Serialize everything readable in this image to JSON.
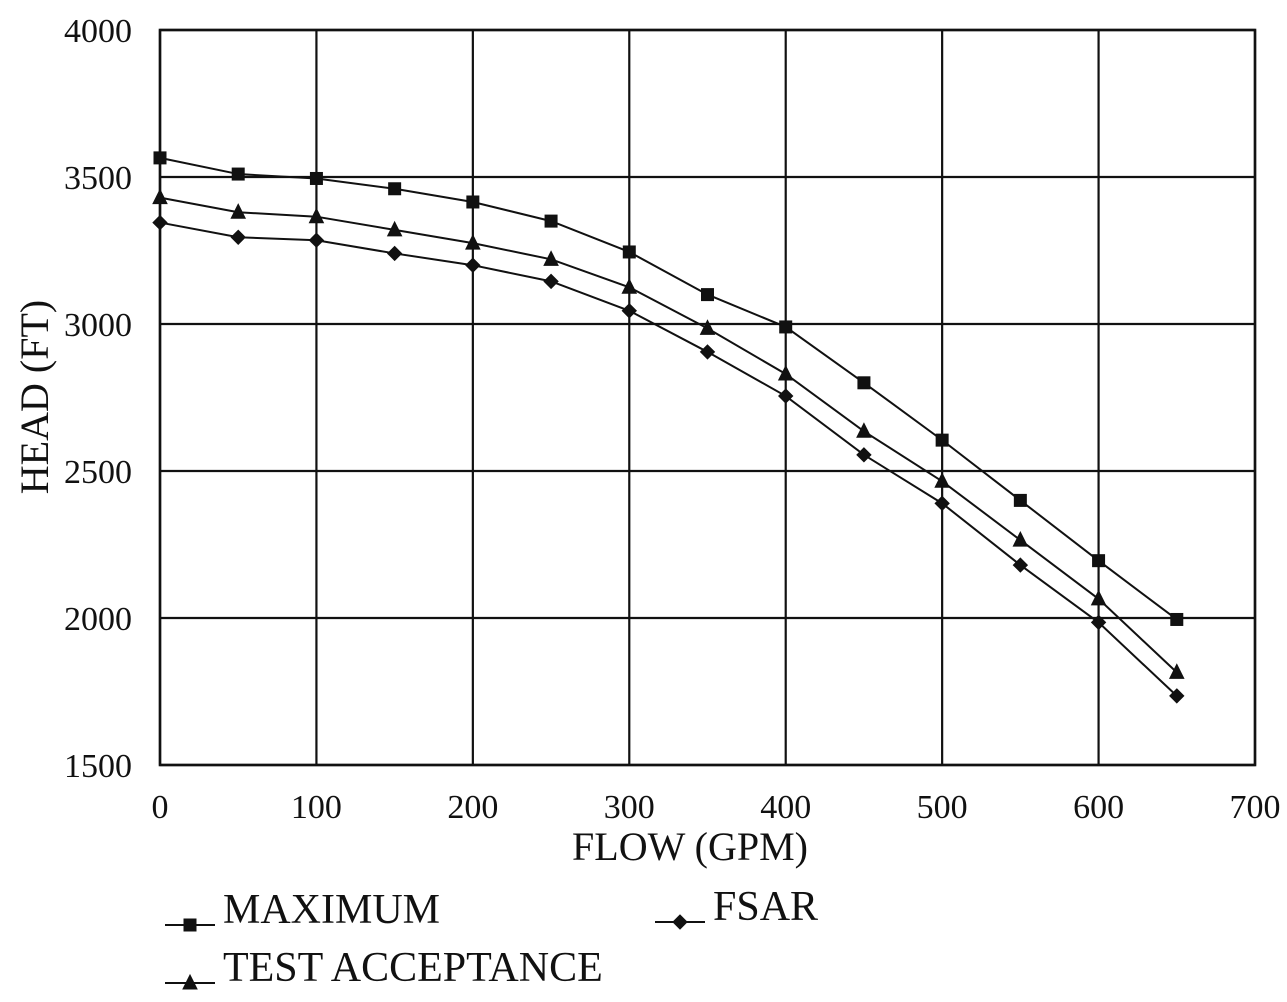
{
  "chart_data": {
    "type": "line",
    "xlabel": "FLOW (GPM)",
    "ylabel": "HEAD (FT)",
    "xlim": [
      0,
      700
    ],
    "ylim": [
      1500,
      4000
    ],
    "xticks": [
      0,
      100,
      200,
      300,
      400,
      500,
      600,
      700
    ],
    "yticks": [
      1500,
      2000,
      2500,
      3000,
      3500,
      4000
    ],
    "grid": true,
    "legend_position": "bottom",
    "x": [
      0,
      50,
      100,
      150,
      200,
      250,
      300,
      350,
      400,
      450,
      500,
      550,
      600,
      650
    ],
    "series": [
      {
        "name": "MAXIMUM",
        "marker": "square",
        "values": [
          3565,
          3510,
          3495,
          3460,
          3415,
          3350,
          3245,
          3100,
          2990,
          2800,
          2605,
          2400,
          2195,
          1995
        ]
      },
      {
        "name": "FSAR",
        "marker": "diamond",
        "values": [
          3345,
          3295,
          3285,
          3240,
          3200,
          3145,
          3045,
          2905,
          2755,
          2555,
          2390,
          2180,
          1985,
          1735
        ]
      },
      {
        "name": "TEST ACCEPTANCE",
        "marker": "triangle",
        "values": [
          3430,
          3380,
          3365,
          3320,
          3275,
          3220,
          3125,
          2985,
          2830,
          2635,
          2465,
          2265,
          2065,
          1815
        ]
      }
    ]
  }
}
